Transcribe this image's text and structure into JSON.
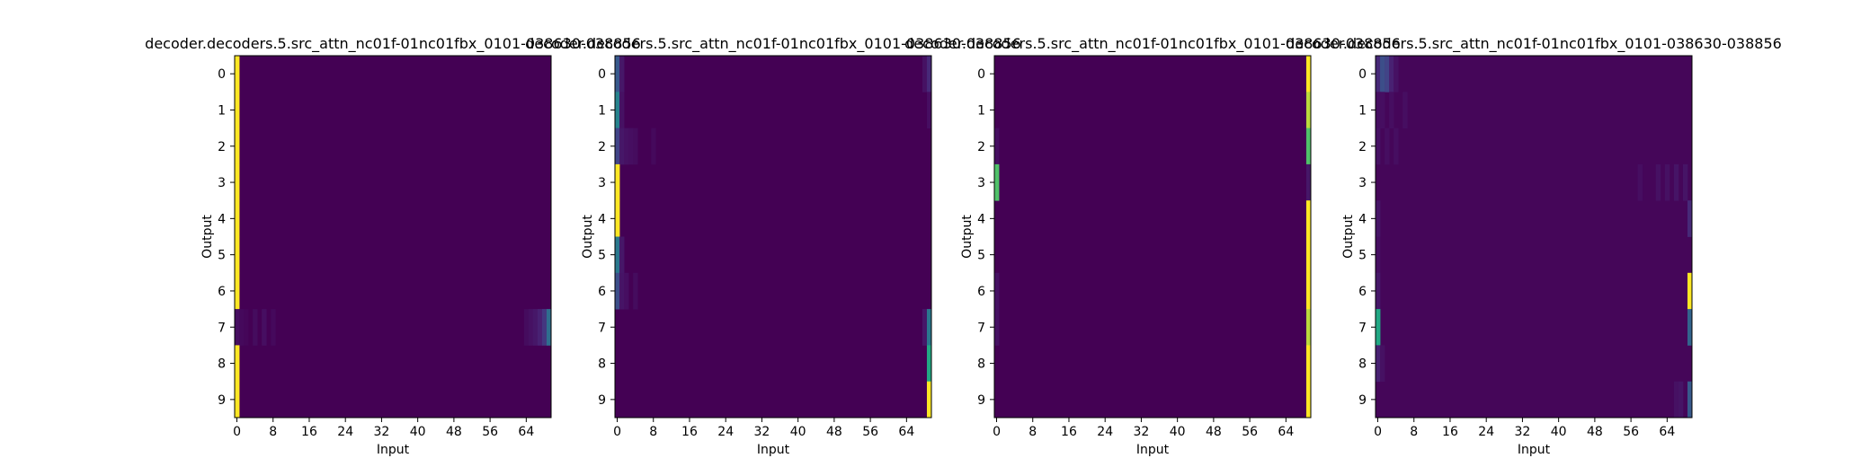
{
  "chart_data": [
    {
      "type": "heatmap",
      "title": "decoder.decoders.5.src_attn_nc01f-01nc01fbx_0101-038630-038856",
      "xlabel": "Input",
      "ylabel": "Output",
      "x_ticks": [
        "0",
        "8",
        "16",
        "24",
        "32",
        "40",
        "48",
        "56",
        "64"
      ],
      "y_ticks": [
        "0",
        "1",
        "2",
        "3",
        "4",
        "5",
        "6",
        "7",
        "8",
        "9"
      ],
      "n_inputs": 70,
      "background": 0.0,
      "highlights": [
        {
          "row": 0,
          "col": 0,
          "value": 1.0
        },
        {
          "row": 1,
          "col": 0,
          "value": 1.0
        },
        {
          "row": 2,
          "col": 0,
          "value": 1.0
        },
        {
          "row": 3,
          "col": 0,
          "value": 1.0
        },
        {
          "row": 4,
          "col": 0,
          "value": 1.0
        },
        {
          "row": 5,
          "col": 0,
          "value": 1.0
        },
        {
          "row": 6,
          "col": 0,
          "value": 1.0
        },
        {
          "row": 7,
          "col": 0,
          "value": 0.05
        },
        {
          "row": 7,
          "col": 1,
          "value": 0.03
        },
        {
          "row": 7,
          "col": 2,
          "value": 0.02
        },
        {
          "row": 7,
          "col": 4,
          "value": 0.04
        },
        {
          "row": 7,
          "col": 6,
          "value": 0.05
        },
        {
          "row": 7,
          "col": 8,
          "value": 0.03
        },
        {
          "row": 7,
          "col": 64,
          "value": 0.04
        },
        {
          "row": 7,
          "col": 65,
          "value": 0.06
        },
        {
          "row": 7,
          "col": 66,
          "value": 0.08
        },
        {
          "row": 7,
          "col": 67,
          "value": 0.12
        },
        {
          "row": 7,
          "col": 68,
          "value": 0.2
        },
        {
          "row": 7,
          "col": 69,
          "value": 0.45
        },
        {
          "row": 8,
          "col": 0,
          "value": 1.0
        },
        {
          "row": 9,
          "col": 0,
          "value": 1.0
        }
      ]
    },
    {
      "type": "heatmap",
      "title": "decoder.decoders.5.src_attn_nc01f-01nc01fbx_0101-038630-038856",
      "xlabel": "Input",
      "ylabel": "Output",
      "x_ticks": [
        "0",
        "8",
        "16",
        "24",
        "32",
        "40",
        "48",
        "56",
        "64"
      ],
      "y_ticks": [
        "0",
        "1",
        "2",
        "3",
        "4",
        "5",
        "6",
        "7",
        "8",
        "9"
      ],
      "n_inputs": 70,
      "background": 0.0,
      "highlights": [
        {
          "row": 0,
          "col": 0,
          "value": 0.35
        },
        {
          "row": 0,
          "col": 1,
          "value": 0.08
        },
        {
          "row": 0,
          "col": 68,
          "value": 0.06
        },
        {
          "row": 0,
          "col": 69,
          "value": 0.15
        },
        {
          "row": 1,
          "col": 0,
          "value": 0.55
        },
        {
          "row": 1,
          "col": 1,
          "value": 0.06
        },
        {
          "row": 1,
          "col": 69,
          "value": 0.05
        },
        {
          "row": 2,
          "col": 0,
          "value": 0.25
        },
        {
          "row": 2,
          "col": 1,
          "value": 0.08
        },
        {
          "row": 2,
          "col": 2,
          "value": 0.06
        },
        {
          "row": 2,
          "col": 3,
          "value": 0.05
        },
        {
          "row": 2,
          "col": 4,
          "value": 0.04
        },
        {
          "row": 2,
          "col": 8,
          "value": 0.03
        },
        {
          "row": 3,
          "col": 0,
          "value": 1.0
        },
        {
          "row": 4,
          "col": 0,
          "value": 1.0
        },
        {
          "row": 5,
          "col": 0,
          "value": 0.5
        },
        {
          "row": 5,
          "col": 1,
          "value": 0.08
        },
        {
          "row": 6,
          "col": 0,
          "value": 0.3
        },
        {
          "row": 6,
          "col": 1,
          "value": 0.07
        },
        {
          "row": 6,
          "col": 2,
          "value": 0.05
        },
        {
          "row": 6,
          "col": 4,
          "value": 0.04
        },
        {
          "row": 7,
          "col": 68,
          "value": 0.08
        },
        {
          "row": 7,
          "col": 69,
          "value": 0.5
        },
        {
          "row": 8,
          "col": 69,
          "value": 0.75
        },
        {
          "row": 9,
          "col": 69,
          "value": 1.0
        }
      ]
    },
    {
      "type": "heatmap",
      "title": "decoder.decoders.5.src_attn_nc01f-01nc01fbx_0101-038630-038856",
      "xlabel": "Input",
      "ylabel": "Output",
      "x_ticks": [
        "0",
        "8",
        "16",
        "24",
        "32",
        "40",
        "48",
        "56",
        "64"
      ],
      "y_ticks": [
        "0",
        "1",
        "2",
        "3",
        "4",
        "5",
        "6",
        "7",
        "8",
        "9"
      ],
      "n_inputs": 70,
      "background": 0.0,
      "highlights": [
        {
          "row": 0,
          "col": 69,
          "value": 1.0
        },
        {
          "row": 1,
          "col": 69,
          "value": 0.95
        },
        {
          "row": 2,
          "col": 69,
          "value": 0.85
        },
        {
          "row": 2,
          "col": 0,
          "value": 0.05
        },
        {
          "row": 3,
          "col": 0,
          "value": 0.85
        },
        {
          "row": 3,
          "col": 69,
          "value": 0.08
        },
        {
          "row": 4,
          "col": 69,
          "value": 1.0
        },
        {
          "row": 5,
          "col": 69,
          "value": 1.0
        },
        {
          "row": 6,
          "col": 69,
          "value": 1.0
        },
        {
          "row": 6,
          "col": 0,
          "value": 0.06
        },
        {
          "row": 7,
          "col": 69,
          "value": 0.95
        },
        {
          "row": 7,
          "col": 0,
          "value": 0.06
        },
        {
          "row": 8,
          "col": 69,
          "value": 1.0
        },
        {
          "row": 9,
          "col": 69,
          "value": 1.0
        }
      ]
    },
    {
      "type": "heatmap",
      "title": "decoder.decoders.5.src_attn_nc01f-01nc01fbx_0101-038630-038856",
      "xlabel": "Input",
      "ylabel": "Output",
      "x_ticks": [
        "0",
        "8",
        "16",
        "24",
        "32",
        "40",
        "48",
        "56",
        "64"
      ],
      "y_ticks": [
        "0",
        "1",
        "2",
        "3",
        "4",
        "5",
        "6",
        "7",
        "8",
        "9"
      ],
      "n_inputs": 70,
      "background": 0.02,
      "highlights": [
        {
          "row": 0,
          "col": 0,
          "value": 0.15
        },
        {
          "row": 0,
          "col": 1,
          "value": 0.3
        },
        {
          "row": 0,
          "col": 2,
          "value": 0.25
        },
        {
          "row": 0,
          "col": 3,
          "value": 0.12
        },
        {
          "row": 0,
          "col": 4,
          "value": 0.06
        },
        {
          "row": 1,
          "col": 0,
          "value": 0.05
        },
        {
          "row": 1,
          "col": 1,
          "value": 0.05
        },
        {
          "row": 1,
          "col": 3,
          "value": 0.05
        },
        {
          "row": 1,
          "col": 6,
          "value": 0.05
        },
        {
          "row": 2,
          "col": 0,
          "value": 0.06
        },
        {
          "row": 2,
          "col": 2,
          "value": 0.05
        },
        {
          "row": 2,
          "col": 4,
          "value": 0.05
        },
        {
          "row": 3,
          "col": 58,
          "value": 0.05
        },
        {
          "row": 3,
          "col": 62,
          "value": 0.06
        },
        {
          "row": 3,
          "col": 64,
          "value": 0.06
        },
        {
          "row": 3,
          "col": 66,
          "value": 0.07
        },
        {
          "row": 3,
          "col": 68,
          "value": 0.07
        },
        {
          "row": 4,
          "col": 0,
          "value": 0.07
        },
        {
          "row": 4,
          "col": 69,
          "value": 0.15
        },
        {
          "row": 5,
          "col": 0,
          "value": 0.05
        },
        {
          "row": 6,
          "col": 69,
          "value": 1.0
        },
        {
          "row": 6,
          "col": 0,
          "value": 0.08
        },
        {
          "row": 7,
          "col": 0,
          "value": 0.75
        },
        {
          "row": 7,
          "col": 69,
          "value": 0.4
        },
        {
          "row": 8,
          "col": 0,
          "value": 0.12
        },
        {
          "row": 8,
          "col": 1,
          "value": 0.06
        },
        {
          "row": 9,
          "col": 69,
          "value": 0.35
        },
        {
          "row": 9,
          "col": 66,
          "value": 0.06
        },
        {
          "row": 9,
          "col": 67,
          "value": 0.07
        }
      ]
    }
  ]
}
